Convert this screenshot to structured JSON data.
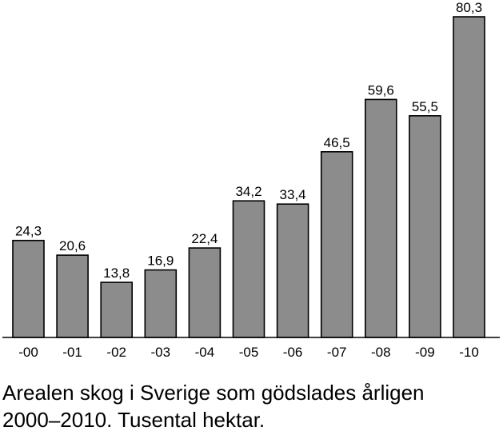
{
  "caption_line1": "Arealen skog i Sverige som gödslades årligen",
  "caption_line2": "2000–2010. Tusental hektar.",
  "chart_data": {
    "type": "bar",
    "categories": [
      "-00",
      "-01",
      "-02",
      "-03",
      "-04",
      "-05",
      "-06",
      "-07",
      "-08",
      "-09",
      "-10"
    ],
    "values": [
      24.3,
      20.6,
      13.8,
      16.9,
      22.4,
      34.2,
      33.4,
      46.5,
      59.6,
      55.5,
      80.3
    ],
    "value_labels": [
      "24,3",
      "20,6",
      "13,8",
      "16,9",
      "22,4",
      "34,2",
      "33,4",
      "46,5",
      "59,6",
      "55,5",
      "80,3"
    ],
    "title": "",
    "xlabel": "",
    "ylabel": "",
    "ylim": [
      0,
      80.3
    ],
    "grid": false,
    "bar_color": "#8c8c8c"
  }
}
